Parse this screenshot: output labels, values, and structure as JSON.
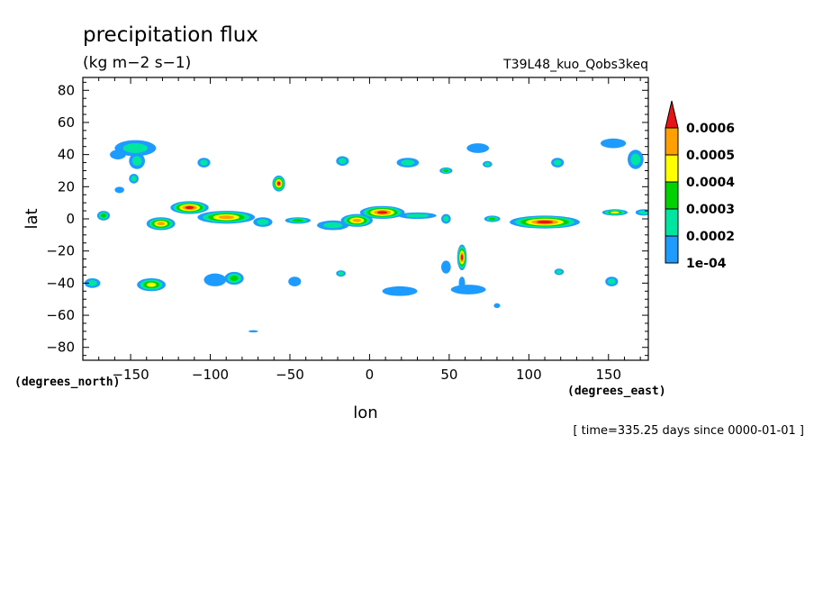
{
  "chart_data": {
    "type": "contour",
    "title": "precipitation flux",
    "units": "(kg m−2 s−1)",
    "run_label": "T39L48_kuo_Qobs3keq",
    "xlabel": "lon",
    "ylabel": "lat",
    "x_unit_label": "(degrees_east)",
    "y_unit_label": "(degrees_north)",
    "time_label": "[ time=335.25 days since 0000-01-01 ]",
    "xlim": [
      -180,
      175
    ],
    "ylim": [
      -88,
      88
    ],
    "x_ticks": [
      -150,
      -100,
      -50,
      0,
      50,
      100,
      150
    ],
    "x_tick_labels": [
      "−150",
      "−100",
      "−50",
      "0",
      "50",
      "100",
      "150"
    ],
    "y_ticks": [
      80,
      60,
      40,
      20,
      0,
      -20,
      -40,
      -60,
      -80
    ],
    "y_tick_labels": [
      "80",
      "60",
      "40",
      "20",
      "0",
      "−20",
      "−40",
      "−60",
      "−80"
    ],
    "levels": [
      0.0001,
      0.0002,
      0.0003,
      0.0004,
      0.0005,
      0.0006
    ],
    "level_labels": [
      "1e-04",
      "0.0002",
      "0.0003",
      "0.0004",
      "0.0005",
      "0.0006"
    ],
    "colors": [
      "#1e9bff",
      "#00e6a0",
      "#00d200",
      "#ffff00",
      "#ffa000",
      "#e61414"
    ],
    "features": [
      {
        "lon": -147,
        "lat": 44,
        "rlon": 13,
        "rlat": 5,
        "level": 2
      },
      {
        "lon": -146,
        "lat": 36,
        "rlon": 5,
        "rlat": 5,
        "level": 2
      },
      {
        "lon": -158,
        "lat": 40,
        "rlon": 5,
        "rlat": 3,
        "level": 1
      },
      {
        "lon": -148,
        "lat": 25,
        "rlon": 3,
        "rlat": 3,
        "level": 2
      },
      {
        "lon": -157,
        "lat": 18,
        "rlon": 3,
        "rlat": 2,
        "level": 1
      },
      {
        "lon": -104,
        "lat": 35,
        "rlon": 4,
        "rlat": 3,
        "level": 2
      },
      {
        "lon": -57,
        "lat": 22,
        "rlon": 4,
        "rlat": 5,
        "level": 6
      },
      {
        "lon": -17,
        "lat": 36,
        "rlon": 4,
        "rlat": 3,
        "level": 2
      },
      {
        "lon": 24,
        "lat": 35,
        "rlon": 7,
        "rlat": 3,
        "level": 2
      },
      {
        "lon": 48,
        "lat": 30,
        "rlon": 4,
        "rlat": 2,
        "level": 3
      },
      {
        "lon": 68,
        "lat": 44,
        "rlon": 7,
        "rlat": 3,
        "level": 1
      },
      {
        "lon": 74,
        "lat": 34,
        "rlon": 3,
        "rlat": 2,
        "level": 2
      },
      {
        "lon": 118,
        "lat": 35,
        "rlon": 4,
        "rlat": 3,
        "level": 2
      },
      {
        "lon": 153,
        "lat": 47,
        "rlon": 8,
        "rlat": 3,
        "level": 1
      },
      {
        "lon": 167,
        "lat": 37,
        "rlon": 5,
        "rlat": 6,
        "level": 2
      },
      {
        "lon": -167,
        "lat": 2,
        "rlon": 4,
        "rlat": 3,
        "level": 3
      },
      {
        "lon": -131,
        "lat": -3,
        "rlon": 9,
        "rlat": 4,
        "level": 5
      },
      {
        "lon": -113,
        "lat": 7,
        "rlon": 12,
        "rlat": 4,
        "level": 6
      },
      {
        "lon": -90,
        "lat": 1,
        "rlon": 18,
        "rlat": 4,
        "level": 5
      },
      {
        "lon": -67,
        "lat": -2,
        "rlon": 6,
        "rlat": 3,
        "level": 2
      },
      {
        "lon": -45,
        "lat": -1,
        "rlon": 8,
        "rlat": 2,
        "level": 3
      },
      {
        "lon": -23,
        "lat": -4,
        "rlon": 10,
        "rlat": 3,
        "level": 2
      },
      {
        "lon": -8,
        "lat": -1,
        "rlon": 10,
        "rlat": 4,
        "level": 5
      },
      {
        "lon": 8,
        "lat": 4,
        "rlon": 14,
        "rlat": 4,
        "level": 6
      },
      {
        "lon": 30,
        "lat": 2,
        "rlon": 12,
        "rlat": 2,
        "level": 2
      },
      {
        "lon": 48,
        "lat": 0,
        "rlon": 3,
        "rlat": 3,
        "level": 2
      },
      {
        "lon": 77,
        "lat": 0,
        "rlon": 5,
        "rlat": 2,
        "level": 3
      },
      {
        "lon": 110,
        "lat": -2,
        "rlon": 22,
        "rlat": 4,
        "level": 6
      },
      {
        "lon": 154,
        "lat": 4,
        "rlon": 8,
        "rlat": 2,
        "level": 4
      },
      {
        "lon": 172,
        "lat": 4,
        "rlon": 5,
        "rlat": 2,
        "level": 2
      },
      {
        "lon": 58,
        "lat": -24,
        "rlon": 3,
        "rlat": 8,
        "level": 6
      },
      {
        "lon": 58,
        "lat": -40,
        "rlon": 2,
        "rlat": 4,
        "level": 1
      },
      {
        "lon": 48,
        "lat": -30,
        "rlon": 3,
        "rlat": 4,
        "level": 1
      },
      {
        "lon": -174,
        "lat": -40,
        "rlon": 5,
        "rlat": 3,
        "level": 2
      },
      {
        "lon": -137,
        "lat": -41,
        "rlon": 9,
        "rlat": 4,
        "level": 4
      },
      {
        "lon": -97,
        "lat": -38,
        "rlon": 7,
        "rlat": 4,
        "level": 1
      },
      {
        "lon": -85,
        "lat": -37,
        "rlon": 6,
        "rlat": 4,
        "level": 3
      },
      {
        "lon": -47,
        "lat": -39,
        "rlon": 4,
        "rlat": 3,
        "level": 1
      },
      {
        "lon": -18,
        "lat": -34,
        "rlon": 3,
        "rlat": 2,
        "level": 2
      },
      {
        "lon": 19,
        "lat": -45,
        "rlon": 11,
        "rlat": 3,
        "level": 1
      },
      {
        "lon": 62,
        "lat": -44,
        "rlon": 11,
        "rlat": 3,
        "level": 1
      },
      {
        "lon": 119,
        "lat": -33,
        "rlon": 3,
        "rlat": 2,
        "level": 2
      },
      {
        "lon": 152,
        "lat": -39,
        "rlon": 4,
        "rlat": 3,
        "level": 2
      },
      {
        "lon": 80,
        "lat": -54,
        "rlon": 2,
        "rlat": 1.5,
        "level": 1
      },
      {
        "lon": -73,
        "lat": -70,
        "rlon": 3,
        "rlat": 0.6,
        "level": 1
      }
    ]
  }
}
